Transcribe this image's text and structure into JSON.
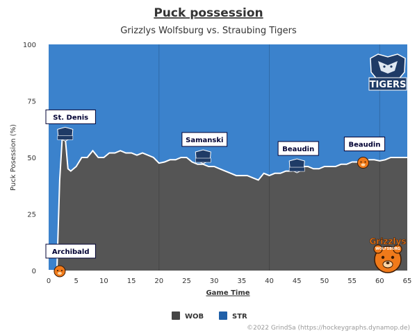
{
  "chart_data": {
    "type": "area",
    "title": "Puck possession",
    "subtitle": "Grizzlys Wolfsburg vs. Straubing Tigers",
    "xlabel": "Game Time",
    "ylabel": "Puck Posession (%)",
    "xlim": [
      0,
      65
    ],
    "ylim": [
      0,
      100
    ],
    "x_ticks": [
      0,
      5,
      10,
      15,
      20,
      25,
      30,
      35,
      40,
      45,
      50,
      55,
      60,
      65
    ],
    "y_ticks": [
      0,
      25,
      50,
      75,
      100
    ],
    "period_lines": [
      20,
      40,
      60
    ],
    "grid": false,
    "legend_position": "bottom",
    "series": [
      {
        "name": "WOB",
        "color": "#555555",
        "x": [
          0,
          1.5,
          2,
          2.5,
          3,
          3.5,
          4,
          5,
          6,
          7,
          8,
          9,
          10,
          11,
          12,
          13,
          14,
          15,
          16,
          17,
          18,
          19,
          20,
          21,
          22,
          23,
          24,
          25,
          26,
          27,
          28,
          29,
          30,
          31,
          32,
          33,
          34,
          35,
          36,
          37,
          38,
          39,
          40,
          41,
          42,
          43,
          44,
          45,
          46,
          47,
          48,
          49,
          50,
          51,
          52,
          53,
          54,
          55,
          56,
          57,
          58,
          59,
          60,
          61,
          62,
          63,
          64,
          65
        ],
        "values": [
          0,
          0,
          40,
          60,
          59,
          45,
          44,
          46,
          50,
          50,
          53,
          50,
          50,
          52,
          52,
          53,
          52,
          52,
          51,
          52,
          51,
          50,
          47.5,
          48,
          49,
          49,
          50,
          50,
          48,
          47,
          47,
          46,
          46,
          45,
          44,
          43,
          42,
          42,
          42,
          41,
          40,
          43,
          42,
          43,
          43,
          44,
          44,
          46,
          46,
          46,
          45,
          45,
          46,
          46,
          46,
          47,
          47,
          48,
          48,
          48,
          49,
          49,
          48.5,
          49,
          50,
          50,
          50,
          50
        ]
      },
      {
        "name": "STR",
        "color": "#3b82cc",
        "note_stack": "complement to 100"
      }
    ],
    "annotations": [
      {
        "text": "St. Denis",
        "x": 3,
        "y": 60
      },
      {
        "text": "Samanski",
        "x": 28,
        "y": 50
      },
      {
        "text": "Beaudin",
        "x": 45,
        "y": 46
      },
      {
        "text": "Beaudin",
        "x": 57,
        "y": 48
      },
      {
        "text": "Archibald",
        "x": 1,
        "y": 0
      }
    ],
    "legend": [
      {
        "label": "WOB",
        "color": "#444444"
      },
      {
        "label": "STR",
        "color": "#1f5fa8"
      }
    ]
  },
  "logos": {
    "tigers": "TIGERS",
    "grizzlys": "Grizzlys",
    "grizzlys_sub": "WOLFSBURG"
  },
  "credits": "©2022 GrindSa (https://hockeygraphs.dynamop.de)"
}
